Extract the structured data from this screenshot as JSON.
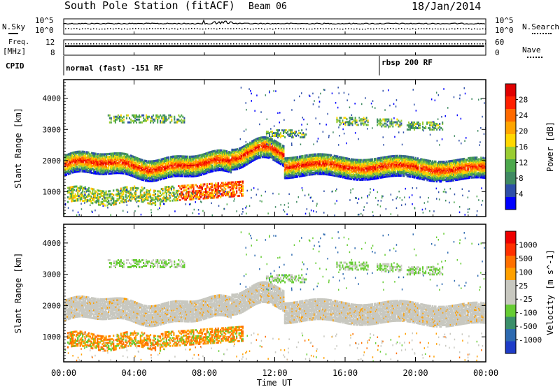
{
  "header": {
    "station": "South Pole Station (fitACF)",
    "beam": "Beam 06",
    "date": "18/Jan/2014"
  },
  "side_labels": {
    "nsky": "N.Sky",
    "nsearch": "N.Search",
    "freq_line1": "Freq.",
    "freq_line2": "[MHz]",
    "nave": "Nave",
    "cpid": "CPID"
  },
  "noise_axis": {
    "left_ticks": [
      "10^5",
      "10^0"
    ],
    "right_ticks": [
      "10^5",
      "10^0"
    ]
  },
  "freq_axis": {
    "left_ticks": [
      "12",
      "8"
    ],
    "right_ticks": [
      "60",
      "0"
    ]
  },
  "cpid_segments": [
    {
      "label": "normal (fast) -151 RF",
      "start_hour": 0
    },
    {
      "label": "rbsp 200 RF",
      "start_hour": 18
    }
  ],
  "x_axis": {
    "label": "Time UT",
    "ticks": [
      "00:00",
      "04:00",
      "08:00",
      "12:00",
      "16:00",
      "20:00",
      "00:00"
    ],
    "range_hours": [
      0,
      24
    ]
  },
  "colors": {
    "power": [
      "#0000ff",
      "#2e4fa8",
      "#3f8a62",
      "#4ca84c",
      "#9acd32",
      "#ffd700",
      "#ffa500",
      "#ff6a00",
      "#ff2000",
      "#e00000"
    ],
    "velocity": [
      "#1e3cc8",
      "#2d6ab0",
      "#3a8f6a",
      "#66cc33",
      "#c8c8c0",
      "#c8c8c0",
      "#ffa000",
      "#ff7000",
      "#ff3000",
      "#ee0000"
    ]
  },
  "chart_data": [
    {
      "type": "heatmap",
      "ylabel": "Slant Range [km]",
      "yticks": [
        1000,
        2000,
        3000,
        4000
      ],
      "ylim": [
        200,
        4600
      ],
      "xlim": [
        0,
        24
      ],
      "colorbar": {
        "label": "Power [dB]",
        "ticks": [
          "28",
          "24",
          "20",
          "16",
          "12",
          "8",
          "4"
        ],
        "range": [
          0,
          30
        ]
      }
    },
    {
      "type": "heatmap",
      "ylabel": "Slant Range [km]",
      "yticks": [
        1000,
        2000,
        3000,
        4000
      ],
      "ylim": [
        200,
        4600
      ],
      "xlim": [
        0,
        24
      ],
      "colorbar": {
        "label": "Velocity [m s^-1]",
        "ticks": [
          "1000",
          "500",
          "100",
          "25",
          "-25",
          "-100",
          "-500",
          "-1000"
        ]
      }
    }
  ]
}
